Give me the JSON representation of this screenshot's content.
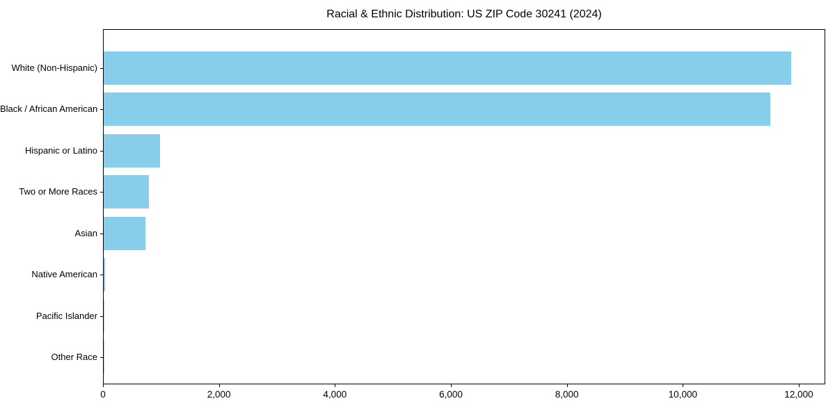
{
  "title": "Racial & Ethnic Distribution: US ZIP Code 30241 (2024)",
  "colors": {
    "bar": "#87CEEB",
    "axis": "#000000",
    "text": "#000000",
    "background": "#FFFFFF"
  },
  "chart_data": {
    "type": "bar",
    "orientation": "horizontal",
    "title": "Racial & Ethnic Distribution: US ZIP Code 30241 (2024)",
    "categories": [
      "White (Non-Hispanic)",
      "Black / African American",
      "Hispanic or Latino",
      "Two or More Races",
      "Asian",
      "Native American",
      "Pacific Islander",
      "Other Race"
    ],
    "values": [
      11850,
      11500,
      970,
      785,
      720,
      20,
      5,
      10
    ],
    "xlabel": "",
    "ylabel": "",
    "xlim": [
      0,
      12450
    ],
    "x_ticks": [
      0,
      2000,
      4000,
      6000,
      8000,
      10000,
      12000
    ],
    "x_tick_labels": [
      "0",
      "2,000",
      "4,000",
      "6,000",
      "8,000",
      "10,000",
      "12,000"
    ],
    "grid": false,
    "legend": null,
    "bar_color": "#87CEEB"
  }
}
